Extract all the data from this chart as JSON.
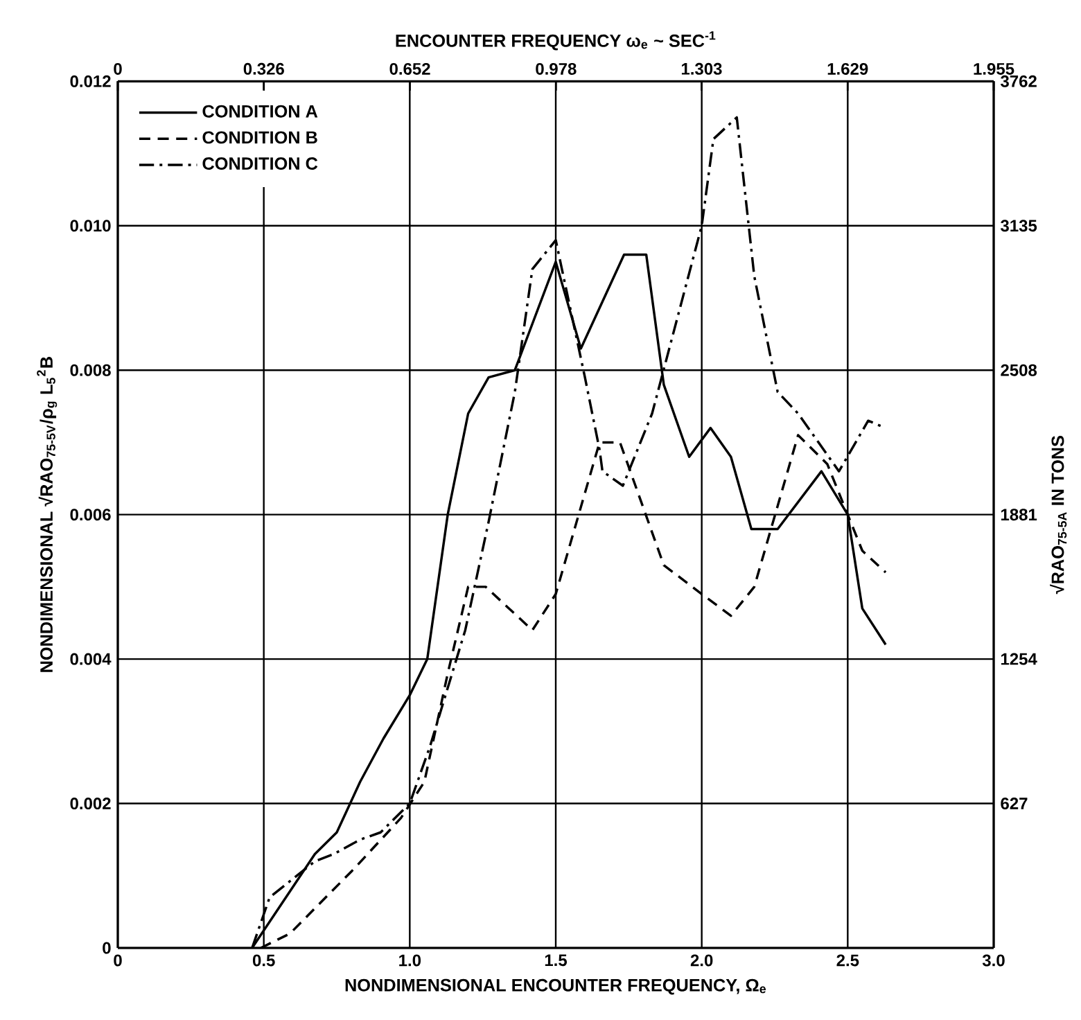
{
  "chart_data": {
    "type": "line",
    "xlabel": "NONDIMENSIONAL ENCOUNTER FREQUENCY, Ω$_{e}$",
    "ylabel": "NONDIMENSIONAL √RAO$_{75-5V}$/ρ$_{g}$ L$_{5}$$^{2}$B",
    "x2label": "ENCOUNTER FREQUENCY ω$_{e}$ ~ SEC$^{-1}$",
    "y2label": "√RAO$_{75-5A}$ IN TONS",
    "xlim": [
      0,
      3
    ],
    "xticks": [
      0,
      0.5,
      {
        "value": 1,
        "label": "1.0"
      },
      1.5,
      {
        "value": 2,
        "label": "2.0"
      },
      2.5,
      {
        "value": 3,
        "label": "3.0"
      }
    ],
    "ylim": [
      0,
      0.012
    ],
    "yticks": [
      0,
      0.002,
      0.004,
      0.006,
      0.008,
      {
        "value": 0.01,
        "label": "0.010"
      },
      0.012
    ],
    "x2lim": [
      0,
      1.955
    ],
    "x2ticks": [
      0,
      0.326,
      0.652,
      0.978,
      1.303,
      1.629,
      1.955
    ],
    "y2lim": [
      0,
      3762
    ],
    "y2ticks": [
      627,
      1254,
      1881,
      2508,
      3135,
      3762
    ],
    "grid": true,
    "legend": "top left",
    "series": [
      {
        "name": "CONDITION A",
        "color": "#000000",
        "line_style": "solid",
        "x": [
          0.46,
          0.675,
          0.75,
          0.83,
          0.91,
          1.0,
          1.06,
          1.13,
          1.2,
          1.27,
          1.36,
          1.5,
          1.586,
          1.734,
          1.81,
          1.87,
          1.957,
          2.03,
          2.1,
          2.17,
          2.26,
          2.41,
          2.5,
          2.55,
          2.63
        ],
        "values": [
          0,
          0.0013,
          0.0016,
          0.0023,
          0.0029,
          0.0035,
          0.004,
          0.006,
          0.0074,
          0.0079,
          0.008,
          0.0095,
          0.0083,
          0.0096,
          0.0096,
          0.0078,
          0.0068,
          0.0072,
          0.0068,
          0.0058,
          0.0058,
          0.0066,
          0.006,
          0.0047,
          0.0042
        ]
      },
      {
        "name": "CONDITION B",
        "color": "#000000",
        "line_style": "dashed",
        "x": [
          0.49,
          0.59,
          0.81,
          0.97,
          1.05,
          1.13,
          1.2,
          1.26,
          1.42,
          1.5,
          1.65,
          1.72,
          1.87,
          2.0,
          2.1,
          2.18,
          2.33,
          2.43,
          2.51,
          2.55,
          2.63
        ],
        "values": [
          0,
          0.0002,
          0.0011,
          0.0018,
          0.0023,
          0.0038,
          0.005,
          0.005,
          0.0044,
          0.0049,
          0.007,
          0.007,
          0.0053,
          0.0049,
          0.0046,
          0.005,
          0.0071,
          0.0067,
          0.0059,
          0.0055,
          0.0052
        ]
      },
      {
        "name": "CONDITION C",
        "color": "#000000",
        "line_style": "dashdot",
        "x": [
          0.46,
          0.52,
          0.675,
          0.74,
          0.83,
          0.9,
          1.0,
          1.07,
          1.19,
          1.27,
          1.36,
          1.42,
          1.5,
          1.6,
          1.65,
          1.66,
          1.73,
          1.83,
          2.0,
          2.04,
          2.12,
          2.18,
          2.26,
          2.33,
          2.47,
          2.57,
          2.63
        ],
        "values": [
          0,
          0.0007,
          0.0012,
          0.0013,
          0.0015,
          0.0016,
          0.002,
          0.0028,
          0.0044,
          0.0059,
          0.0077,
          0.0094,
          0.0098,
          0.0079,
          0.0069,
          0.0066,
          0.0064,
          0.0074,
          0.01,
          0.0112,
          0.0115,
          0.0093,
          0.0077,
          0.0074,
          0.0066,
          0.0073,
          0.0072
        ]
      }
    ]
  }
}
